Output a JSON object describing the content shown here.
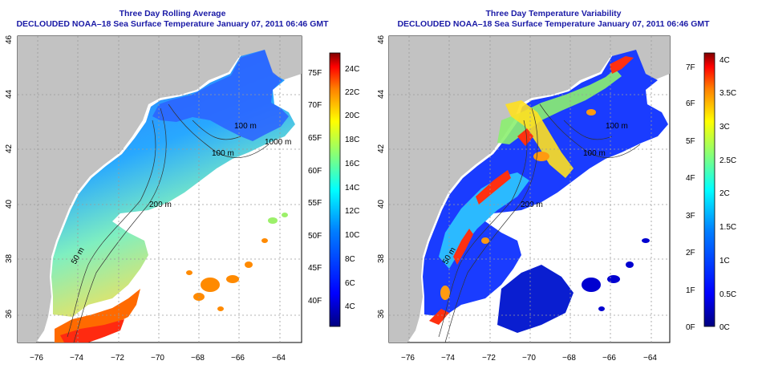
{
  "panels": [
    {
      "title": "Three Day Rolling Average",
      "subtitle": "DECLOUDED NOAA–18 Sea Surface Temperature January 07, 2011 06:46 GMT",
      "lat_ticks": [
        "36",
        "38",
        "40",
        "42",
        "44",
        "46"
      ],
      "lon_ticks": [
        "−76",
        "−74",
        "−72",
        "−70",
        "−68",
        "−66",
        "−64"
      ],
      "contours": [
        "100 m",
        "100 m",
        "200 m",
        "1000 m",
        "50 m"
      ],
      "colorbar": {
        "fahrenheit": [
          "40F",
          "45F",
          "50F",
          "55F",
          "60F",
          "65F",
          "70F",
          "75F"
        ],
        "celsius": [
          "4C",
          "6C",
          "8C",
          "10C",
          "12C",
          "14C",
          "16C",
          "18C",
          "20C",
          "22C",
          "24C"
        ]
      }
    },
    {
      "title": "Three Day Temperature Variability",
      "subtitle": "DECLOUDED NOAA–18 Sea Surface Temperature January 07, 2011 06:46 GMT",
      "lat_ticks": [
        "36",
        "38",
        "40",
        "42",
        "44",
        "46"
      ],
      "lon_ticks": [
        "−76",
        "−74",
        "−72",
        "−70",
        "−68",
        "−66",
        "−64"
      ],
      "contours": [
        "100 m",
        "100 m",
        "200 m",
        "50 m"
      ],
      "colorbar": {
        "fahrenheit": [
          "0F",
          "1F",
          "2F",
          "3F",
          "4F",
          "5F",
          "6F",
          "7F"
        ],
        "celsius": [
          "0C",
          "0.5C",
          "1C",
          "1.5C",
          "2C",
          "2.5C",
          "3C",
          "3.5C",
          "4C"
        ]
      }
    }
  ],
  "colors": {
    "land": "#c2c2c2",
    "grid": "#9a9a9a",
    "title": "#1a1aa6",
    "jet": [
      "#00007f",
      "#0000ff",
      "#007fff",
      "#00ffff",
      "#7fff7f",
      "#ffff00",
      "#ff7f00",
      "#ff0000",
      "#7f0000"
    ]
  }
}
